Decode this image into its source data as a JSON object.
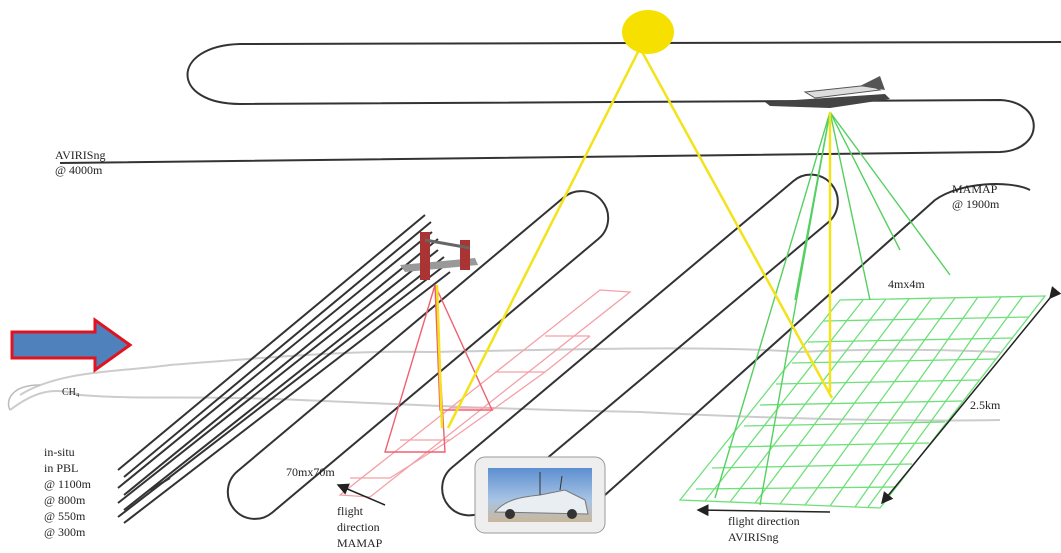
{
  "labels": {
    "avirisng": [
      "AVIRISng",
      "@ 4000m"
    ],
    "mamap": [
      "MAMAP",
      "@ 1900m"
    ],
    "avirisng_pixel": "4mx4m",
    "swath": "2.5km",
    "plume": "CH₄",
    "insitu": [
      "in-situ",
      "in PBL",
      "@ 1100m",
      "@ 800m",
      "@ 550m",
      "@ 300m"
    ],
    "mamap_pixel": "70mx70m",
    "mamap_direction": [
      "flight",
      "direction",
      "MAMAP"
    ],
    "avirisng_direction": [
      "flight direction",
      "AVIRISng"
    ]
  }
}
